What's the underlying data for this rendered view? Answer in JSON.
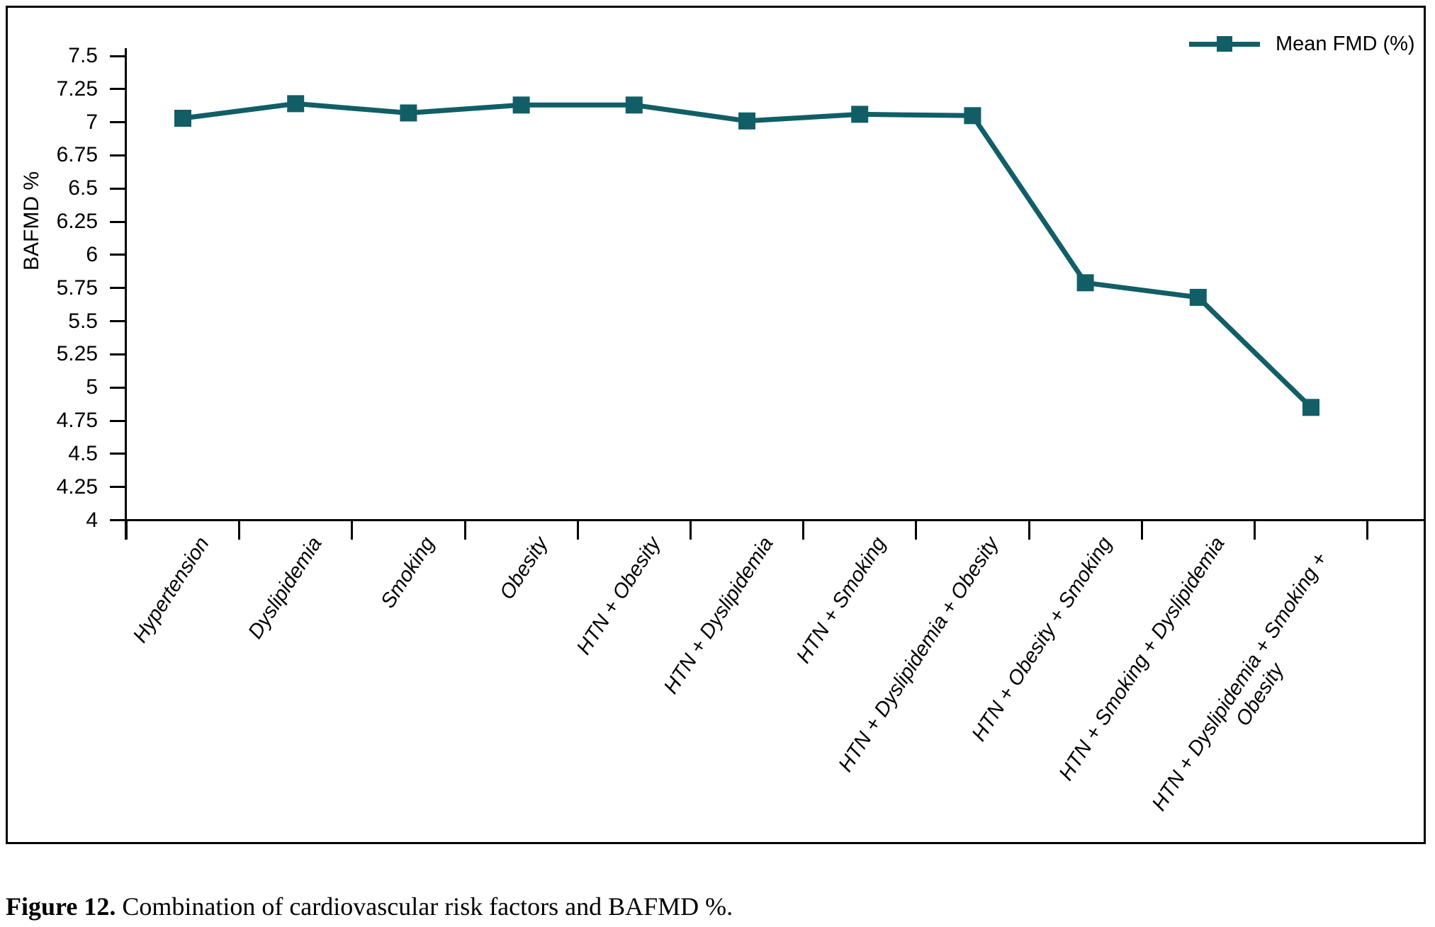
{
  "figure": {
    "caption_label": "Figure 12.",
    "caption_text": "Combination of cardiovascular risk factors and BAFMD %."
  },
  "chart_data": {
    "type": "line",
    "title": "",
    "xlabel": "",
    "ylabel": "BAFMD %",
    "legend_position": "top-right",
    "grid": false,
    "ylim": [
      4,
      7.5
    ],
    "ytick_step": 0.25,
    "yticks": [
      "7.5",
      "7.25",
      "7",
      "6.75",
      "6.5",
      "6.25",
      "6",
      "5.75",
      "5.5",
      "5.25",
      "5",
      "4.75",
      "4.5",
      "4.25",
      "4"
    ],
    "categories": [
      "Hypertension",
      "Dyslipidemia",
      "Smoking",
      "Obesity",
      "HTN + Obesity",
      "HTN + Dyslipidemia",
      "HTN + Smoking",
      "HTN + Dyslipidemia + Obesity",
      "HTN + Obesity + Smoking",
      "HTN + Smoking + Dyslipidemia",
      "HTN + Dyslipidemia + Smoking + Obesity"
    ],
    "series": [
      {
        "name": "Mean FMD (%)",
        "color": "#115e66",
        "marker": "square",
        "values": [
          7.03,
          7.14,
          7.07,
          7.13,
          7.13,
          7.01,
          7.06,
          7.05,
          5.79,
          5.68,
          4.85
        ]
      }
    ]
  }
}
